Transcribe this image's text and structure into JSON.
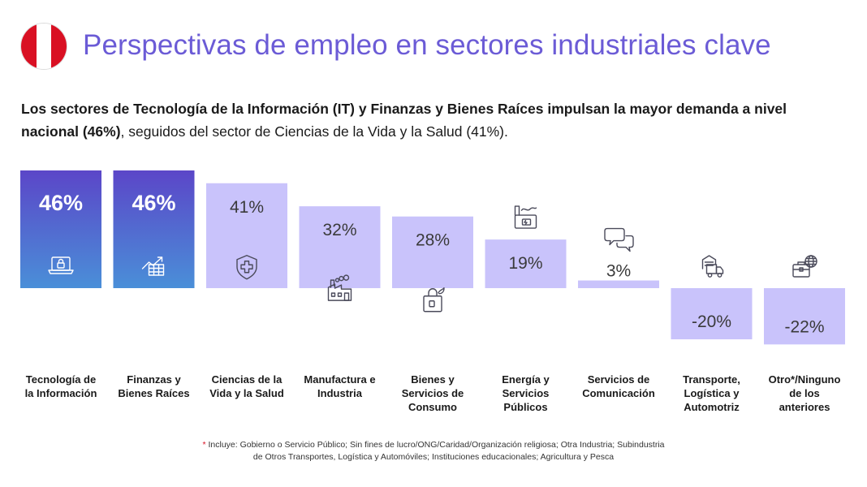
{
  "header": {
    "title": "Perspectivas de empleo en sectores industriales clave",
    "flag_icon": "peru-flag-icon"
  },
  "subtitle": {
    "bold_part": "Los sectores de Tecnología de la Información (IT) y Finanzas y Bienes Raíces impulsan la mayor demanda a nivel nacional (46%)",
    "regular_part": ", seguidos del sector de Ciencias de la Vida y la Salud (41%)."
  },
  "footnote": {
    "star": "*",
    "line1": "Incluye: Gobierno o Servicio Público; Sin fines de lucro/ONG/Caridad/Organización religiosa; Otra Industria; Subindustria",
    "line2": "de Otros Transportes, Logística y Automóviles; Instituciones educacionales; Agricultura y Pesca"
  },
  "colors": {
    "highlight_top": "#5b46c8",
    "highlight_bottom": "#4a8fd8",
    "bar": "#c9c3fb",
    "title": "#6b5bd6",
    "icon_dark": "#4a4a5a"
  },
  "chart_data": {
    "type": "bar",
    "categories": [
      "Tecnología de la Información",
      "Finanzas y Bienes Raíces",
      "Ciencias de la Vida y la Salud",
      "Manufactura e Industria",
      "Bienes y Servicios de Consumo",
      "Energía y Servicios Públicos",
      "Servicios de Comunicación",
      "Transporte, Logística y Automotriz",
      "Otro*/Ninguno de los anteriores"
    ],
    "category_lines": [
      [
        "Tecnología de",
        "la Información"
      ],
      [
        "Finanzas y",
        "Bienes Raíces"
      ],
      [
        "Ciencias de la",
        "Vida y la Salud"
      ],
      [
        "Manufactura e",
        "Industria"
      ],
      [
        "Bienes y",
        "Servicios de",
        "Consumo"
      ],
      [
        "Energía y",
        "Servicios",
        "Públicos"
      ],
      [
        "Servicios de",
        "Comunicación"
      ],
      [
        "Transporte,",
        "Logística y",
        "Automotriz"
      ],
      [
        "Otro*/Ninguno",
        "de los",
        "anteriores"
      ]
    ],
    "values": [
      46,
      46,
      41,
      32,
      28,
      19,
      3,
      -20,
      -22
    ],
    "labels": [
      "46%",
      "46%",
      "41%",
      "32%",
      "28%",
      "19%",
      "3%",
      "-20%",
      "-22%"
    ],
    "highlighted": [
      true,
      true,
      false,
      false,
      false,
      false,
      false,
      false,
      false
    ],
    "icons": [
      "laptop-lock-icon",
      "chart-growth-icon",
      "health-shield-icon",
      "factory-icon",
      "shopping-bag-icon",
      "energy-factory-icon",
      "chat-bubbles-icon",
      "truck-building-icon",
      "globe-briefcase-icon"
    ],
    "title": "",
    "xlabel": "",
    "ylabel": ""
  }
}
